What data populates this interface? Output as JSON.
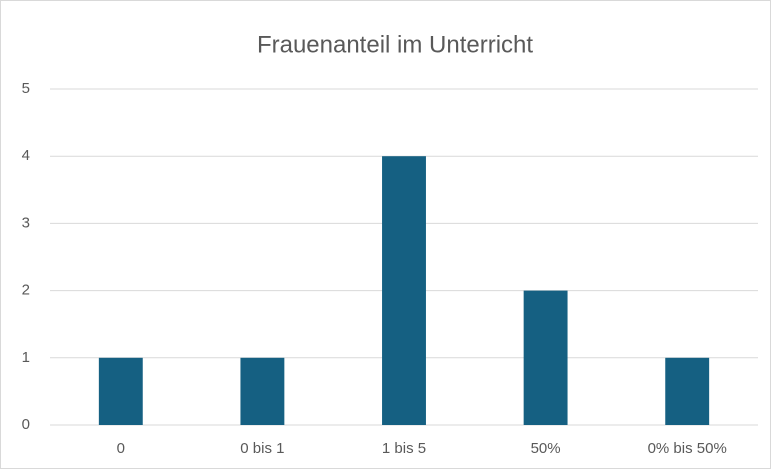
{
  "chart_data": {
    "type": "bar",
    "title": "Frauenanteil im Unterricht",
    "categories": [
      "0",
      "0 bis 1",
      "1 bis 5",
      "50%",
      "0% bis 50%"
    ],
    "values": [
      1,
      1,
      4,
      2,
      1
    ],
    "color": "#156082",
    "ylim": [
      0,
      5
    ],
    "yticks": [
      0,
      1,
      2,
      3,
      4,
      5
    ],
    "grid": true
  }
}
